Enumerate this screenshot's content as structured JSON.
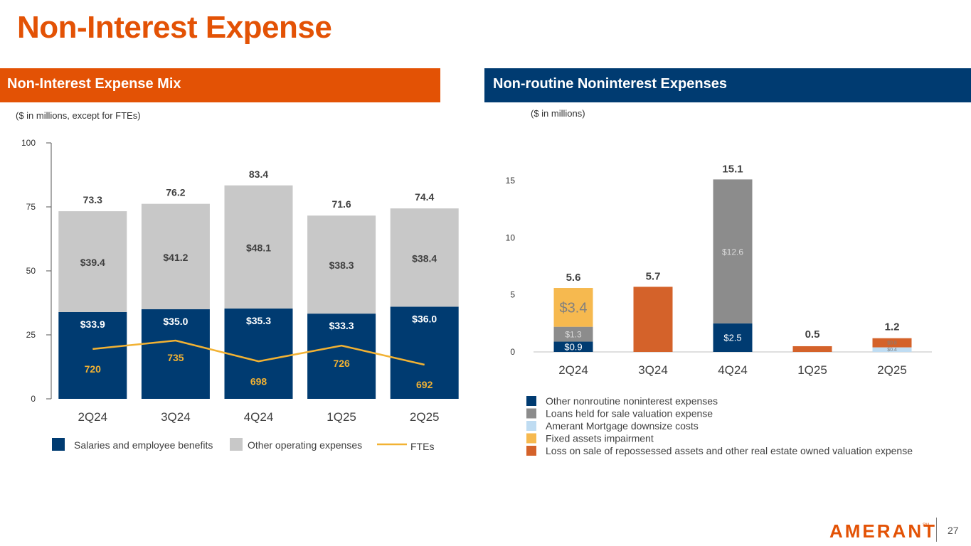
{
  "page": {
    "title": "Non-Interest Expense",
    "page_number": "27",
    "logo_text": "AMERANT",
    "logo_mark": "SM",
    "colors": {
      "brand_orange": "#e35205",
      "brand_navy": "#003b71"
    }
  },
  "left_panel": {
    "header": "Non-Interest Expense Mix",
    "units_note": "($ in millions, except for FTEs)"
  },
  "right_panel": {
    "header": "Non-routine Noninterest Expenses",
    "units_note": "($ in millions)"
  },
  "chart_data": [
    {
      "type": "bar",
      "stacked": true,
      "title": "Non-Interest Expense Mix",
      "categories": [
        "2Q24",
        "3Q24",
        "4Q24",
        "1Q25",
        "2Q25"
      ],
      "ylim": [
        0,
        100
      ],
      "yticks": [
        "0",
        "25",
        "50",
        "75",
        "100"
      ],
      "series": [
        {
          "name": "Salaries and employee benefits",
          "color": "#003b71",
          "values": [
            33.9,
            35.0,
            35.3,
            33.3,
            36.0
          ],
          "labels": [
            "$33.9",
            "$35.0",
            "$35.3",
            "$33.3",
            "$36.0"
          ]
        },
        {
          "name": "Other operating expenses",
          "color": "#c8c8c8",
          "values": [
            39.4,
            41.2,
            48.1,
            38.3,
            38.4
          ],
          "labels": [
            "$39.4",
            "$41.2",
            "$48.1",
            "$38.3",
            "$38.4"
          ]
        }
      ],
      "totals": [
        "73.3",
        "76.2",
        "83.4",
        "71.6",
        "74.4"
      ],
      "line": {
        "name": "FTEs",
        "color": "#f2b233",
        "values": [
          720,
          735,
          698,
          726,
          692
        ],
        "labels": [
          "720",
          "735",
          "698",
          "726",
          "692"
        ]
      },
      "legend": [
        "Salaries and employee benefits",
        "Other operating expenses",
        "FTEs"
      ]
    },
    {
      "type": "bar",
      "stacked": true,
      "title": "Non-routine Noninterest Expenses",
      "categories": [
        "2Q24",
        "3Q24",
        "4Q24",
        "1Q25",
        "2Q25"
      ],
      "ylim": [
        0,
        15
      ],
      "yticks": [
        "0",
        "5",
        "10",
        "15"
      ],
      "series": [
        {
          "name": "Other nonroutine noninterest expenses",
          "color": "#003b71",
          "values": [
            0.9,
            0,
            2.5,
            0,
            0
          ],
          "labels": [
            "$0.9",
            "",
            "$2.5",
            "",
            ""
          ]
        },
        {
          "name": "Loans held for sale valuation expense",
          "color": "#8c8c8c",
          "values": [
            1.3,
            0,
            12.6,
            0,
            0
          ],
          "labels": [
            "$1.3",
            "",
            "$12.6",
            "",
            ""
          ]
        },
        {
          "name": "Amerant Mortgage downsize costs",
          "color": "#bfdcf2",
          "values": [
            0,
            0,
            0,
            0,
            0.4
          ],
          "labels": [
            "",
            "",
            "",
            "",
            "$0.4"
          ]
        },
        {
          "name": "Fixed assets impairment",
          "color": "#f6b94f",
          "values": [
            3.4,
            0,
            0,
            0,
            0
          ],
          "labels": [
            "$3.4",
            "",
            "",
            "",
            ""
          ]
        },
        {
          "name": "Loss on sale of repossessed assets and other real estate owned valuation expense",
          "color": "#d4622a",
          "values": [
            0,
            5.7,
            0,
            0.5,
            0.8
          ],
          "labels": [
            "",
            "",
            "",
            "",
            "$0.8"
          ]
        }
      ],
      "totals": [
        "5.6",
        "5.7",
        "15.1",
        "0.5",
        "1.2"
      ],
      "legend": [
        "Other nonroutine noninterest expenses",
        "Loans held for sale valuation expense",
        "Amerant Mortgage downsize costs",
        "Fixed assets impairment",
        "Loss on sale of repossessed assets and other real estate owned valuation expense"
      ]
    }
  ]
}
